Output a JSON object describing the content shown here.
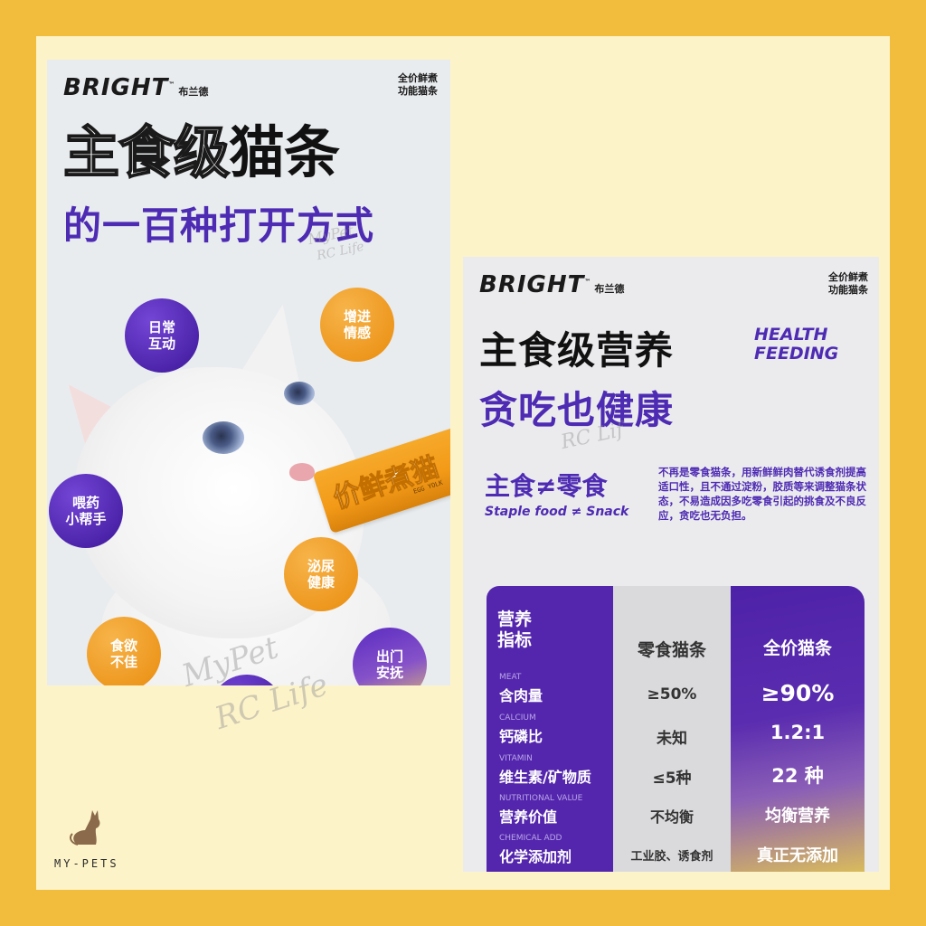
{
  "colors": {
    "frame": "#f2bc3c",
    "canvas": "#fdf3c8",
    "purple": "#4e2bb3",
    "orange": "#ec9419"
  },
  "left_poster": {
    "brand": "BRIGHT",
    "brand_tm": "™",
    "brand_cn": "布兰德",
    "tag_line1": "全价鲜煮",
    "tag_line2": "功能猫条",
    "headline_outline": "主食级",
    "headline_solid": "猫条",
    "subheadline": "的一百种打开方式",
    "treat_text": "价鲜煮猫",
    "treat_sub": "EGG YOLK",
    "bubbles": {
      "daily": [
        "日常",
        "互动"
      ],
      "appetite_up": [
        "增进",
        "情感"
      ],
      "medicine": [
        "喂药",
        "小帮手"
      ],
      "urinary": [
        "泌尿",
        "健康"
      ],
      "poor_appetite": [
        "食欲",
        "不佳"
      ],
      "outing": [
        "出门",
        "安抚"
      ]
    }
  },
  "right_poster": {
    "brand": "BRIGHT",
    "brand_tm": "™",
    "brand_cn": "布兰德",
    "tag_line1": "全价鲜煮",
    "tag_line2": "功能猫条",
    "title_cn": "主食级营养",
    "title_en_1": "HEALTH",
    "title_en_2": "FEEDING",
    "subtitle_cn": "贪吃也健康",
    "staple_cn": "主食≠零食",
    "staple_en": "Staple food ≠ Snack",
    "description": "不再是零食猫条，用新鲜鲜肉替代诱食剂提高适口性，且不通过淀粉，胶质等来调整猫条状态，不易造成因多吃零食引起的挑食及不良反应，贪吃也无负担。",
    "table": {
      "header_a_1": "营养",
      "header_a_2": "指标",
      "header_b": "零食猫条",
      "header_c": "全价猫条",
      "rows": [
        {
          "en": "MEAT",
          "cn": "含肉量",
          "snack": "≥50%",
          "full": "≥90%"
        },
        {
          "en": "CALCIUM",
          "cn": "钙磷比",
          "snack": "未知",
          "full": "1.2:1"
        },
        {
          "en": "VITAMIN",
          "cn": "维生素/矿物质",
          "snack": "≤5种",
          "full": "22 种"
        },
        {
          "en": "NUTRITIONAL VALUE",
          "cn": "营养价值",
          "snack": "不均衡",
          "full": "均衡营养"
        },
        {
          "en": "CHEMICAL ADD",
          "cn": "化学添加剂",
          "snack": "工业胶、诱食剂",
          "full": "真正无添加"
        }
      ]
    }
  },
  "watermark": {
    "line1": "MyPet",
    "line2": "RC Life",
    "short": "RC Lif"
  },
  "footer_logo": {
    "text": "MY-PETS"
  }
}
